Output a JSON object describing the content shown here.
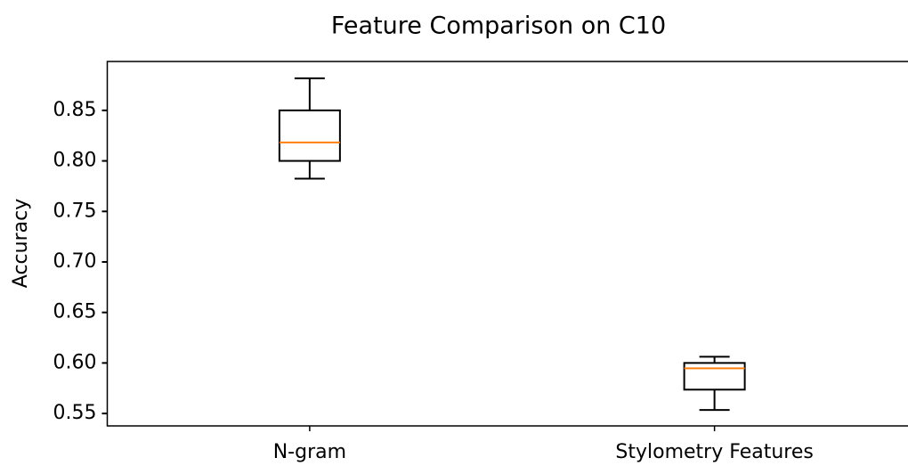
{
  "chart_data": {
    "type": "box",
    "title": "Feature Comparison on C10",
    "y_label": "Accuracy",
    "categories": [
      "N-gram",
      "Stylometry Features"
    ],
    "boxes": [
      {
        "min": 0.7824,
        "q1": 0.8,
        "median": 0.8183,
        "q3": 0.85,
        "max": 0.8817
      },
      {
        "min": 0.5535,
        "q1": 0.5736,
        "median": 0.5947,
        "q3": 0.6,
        "max": 0.6062
      }
    ],
    "box_color": "#000000",
    "median_color": "#ff7f0e",
    "ylim": [
      0.5377,
      0.8984
    ],
    "yticks": [
      0.55,
      {
        "value": 0.6,
        "label": "0.60"
      },
      0.65,
      {
        "value": 0.7,
        "label": "0.70"
      },
      0.75,
      {
        "value": 0.8,
        "label": "0.80"
      },
      0.85
    ],
    "grid": false
  }
}
